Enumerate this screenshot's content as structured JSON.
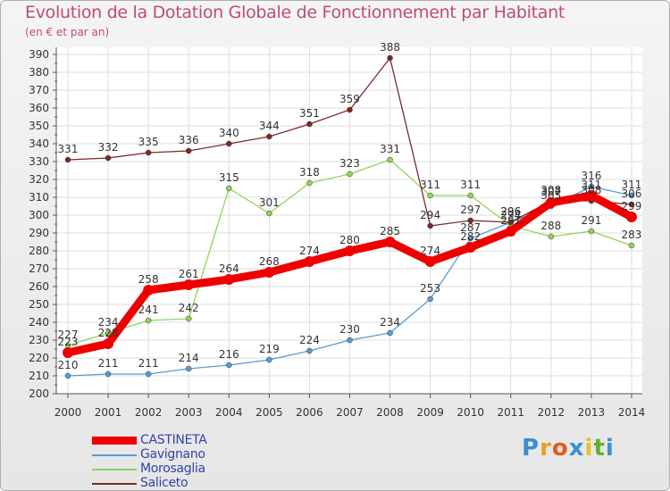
{
  "title": "Evolution de la Dotation Globale de Fonctionnement par Habitant",
  "subtitle": "(en € et par an)",
  "brand": {
    "text": "Proxiti",
    "letters": [
      "P",
      "r",
      "o",
      "x",
      "i",
      "t",
      "i"
    ],
    "colors": [
      "#3a8fd0",
      "#e8a020",
      "#e05a20",
      "#3a8fd0",
      "#e8c020",
      "#60b030",
      "#3a8fd0"
    ]
  },
  "chart_data": {
    "type": "line",
    "title": "Evolution de la Dotation Globale de Fonctionnement par Habitant",
    "subtitle": "(en € et par an)",
    "xlabel": "",
    "ylabel": "",
    "ylim": [
      200,
      390
    ],
    "yticks": [
      200,
      210,
      220,
      230,
      240,
      250,
      260,
      270,
      280,
      290,
      300,
      310,
      320,
      330,
      340,
      350,
      360,
      370,
      380,
      390
    ],
    "categories": [
      "2000",
      "2001",
      "2002",
      "2003",
      "2004",
      "2005",
      "2006",
      "2007",
      "2008",
      "2009",
      "2010",
      "2011",
      "2012",
      "2013",
      "2014"
    ],
    "legend_position": "bottom-left",
    "series": [
      {
        "name": "CASTINETA",
        "color": "#ee0000",
        "emphasis": true,
        "values": [
          223,
          228,
          258,
          261,
          264,
          268,
          274,
          280,
          285,
          274,
          282,
          291,
          307,
          311,
          299
        ]
      },
      {
        "name": "Gavignano",
        "color": "#5b9bd0",
        "emphasis": false,
        "values": [
          210,
          211,
          211,
          214,
          216,
          219,
          224,
          230,
          234,
          253,
          287,
          296,
          305,
          316,
          311
        ]
      },
      {
        "name": "Morosaglia",
        "color": "#8fd45c",
        "emphasis": false,
        "values": [
          227,
          234,
          241,
          242,
          315,
          301,
          318,
          323,
          331,
          311,
          311,
          294,
          288,
          291,
          283
        ]
      },
      {
        "name": "Saliceto",
        "color": "#7a2a2a",
        "emphasis": false,
        "values": [
          331,
          332,
          335,
          336,
          340,
          344,
          351,
          359,
          388,
          294,
          297,
          296,
          308,
          308,
          306
        ]
      }
    ]
  }
}
